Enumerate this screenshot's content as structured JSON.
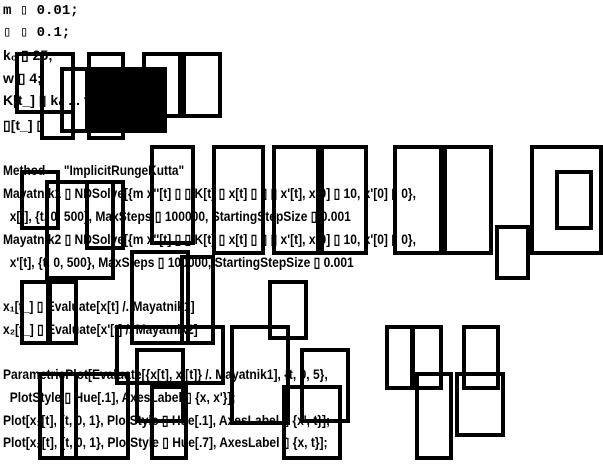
{
  "notebook": {
    "lines": [
      "m ▯ 0.01;",
      "▯ ▯ 0.1;",
      "k₀ ▯ 25;",
      "w ▯ 4;",
      "K[t_] ▯ k₀ ... t",
      "▯[t_] ▯",
      "Method → \"ImplicitRungeKutta\"",
      "Mayatnik1 ▯ NDSolve[{m x''[t] ▯ ▯ K[t] ▯ x[t] ▯ ▯ ▯ x'[t], x[0] ▯ 10, x'[0] ▯ 0},",
      "  x[t], {t, 0, 500}, MaxSteps ▯ 100000, StartingStepSize ▯ 0.001",
      "Mayatnik2 ▯ NDSolve[{m x''[t] ▯ ▯ K[t] ▯ x[t] ▯ ▯ ▯ x'[t], x[0] ▯ 10, x'[0] ▯ 0},",
      "  x'[t], {t, 0, 500}, MaxSteps ▯ 100000, StartingStepSize ▯ 0.001",
      "x₁[t_] ▯ Evaluate[x[t] /. Mayatnik1]",
      "x₂[t_] ▯ Evaluate[x'[t] /. Mayatnik2]",
      "ParametricPlot[Evaluate[{x[t], x'[t]} /. Mayatnik1], {t, 0, 5},",
      "  PlotStyle ▯ Hue[.1], AxesLabel ▯ {x, x'}];",
      "Plot[x₁[t], {t, 0, 1}, PlotStyle ▯ Hue[.1], AxesLabel ▯ {x', t}];",
      "Plot[x₂[t], {t, 0, 1}, PlotStyle ▯ Hue[.7], AxesLabel ▯ {x, t}];"
    ]
  }
}
